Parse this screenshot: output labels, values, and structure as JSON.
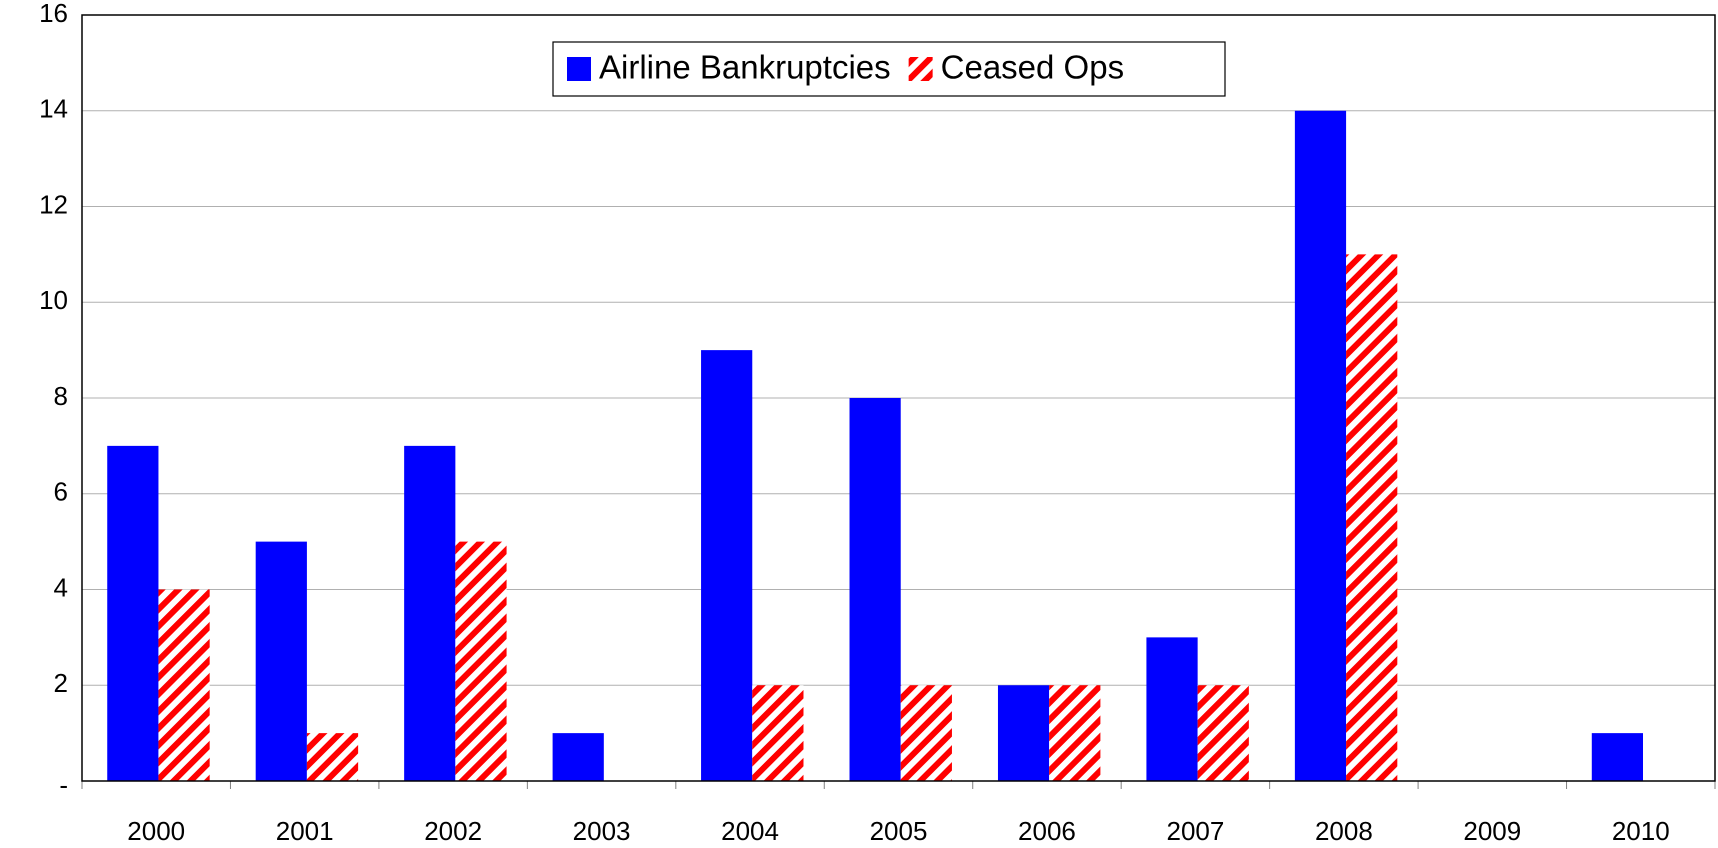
{
  "chart_data": {
    "type": "bar",
    "categories": [
      "2000",
      "2001",
      "2002",
      "2003",
      "2004",
      "2005",
      "2006",
      "2007",
      "2008",
      "2009",
      "2010"
    ],
    "series": [
      {
        "name": "Airline Bankruptcies",
        "color": "#0000ff",
        "values": [
          7,
          5,
          7,
          1,
          9,
          8,
          2,
          3,
          14,
          0,
          1
        ]
      },
      {
        "name": "Ceased Ops",
        "color": "#ff0000",
        "pattern": "hatch",
        "values": [
          4,
          1,
          5,
          0,
          2,
          2,
          2,
          2,
          11,
          0,
          0
        ]
      }
    ],
    "ylim": [
      0,
      16
    ],
    "yticks": [
      {
        "value": 0,
        "label": "-"
      },
      2,
      4,
      6,
      8,
      10,
      12,
      14,
      16
    ],
    "grid": true,
    "legend": "top"
  }
}
